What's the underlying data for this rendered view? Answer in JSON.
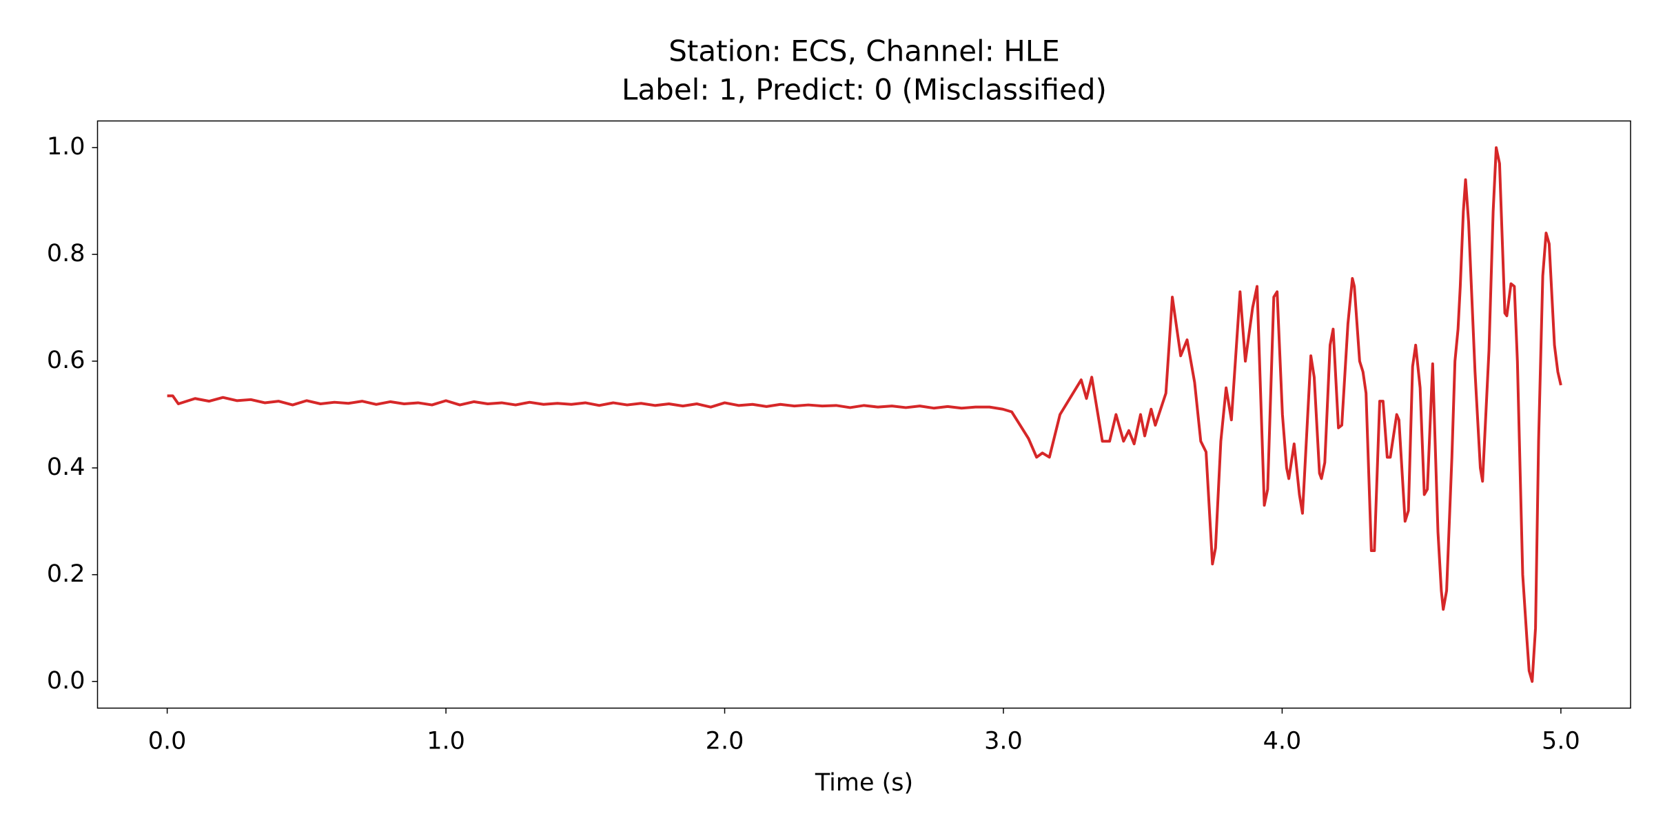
{
  "chart_data": {
    "type": "line",
    "title": "Station: ECS, Channel: HLE",
    "subtitle": "Label: 1, Predict: 0 (Misclassified)",
    "xlabel": "Time (s)",
    "color": "#d62728",
    "xlim": [
      -0.25,
      5.25
    ],
    "ylim": [
      -0.05,
      1.05
    ],
    "xticks": [
      {
        "value": 0,
        "label": "0.0"
      },
      {
        "value": 1,
        "label": "1.0"
      },
      {
        "value": 2,
        "label": "2.0"
      },
      {
        "value": 3,
        "label": "3.0"
      },
      {
        "value": 4,
        "label": "4.0"
      },
      {
        "value": 5,
        "label": "5.0"
      }
    ],
    "yticks": [
      {
        "value": 0,
        "label": "0.0"
      },
      {
        "value": 0.2,
        "label": "0.2"
      },
      {
        "value": 0.4,
        "label": "0.4"
      },
      {
        "value": 0.6,
        "label": "0.6"
      },
      {
        "value": 0.8,
        "label": "0.8"
      },
      {
        "value": 1,
        "label": "1.0"
      }
    ],
    "x": [
      0,
      0.02,
      0.04,
      0.07,
      0.1,
      0.15,
      0.2,
      0.25,
      0.3,
      0.35,
      0.4,
      0.45,
      0.5,
      0.55,
      0.6,
      0.65,
      0.7,
      0.75,
      0.8,
      0.85,
      0.9,
      0.95,
      1.0,
      1.05,
      1.1,
      1.15,
      1.2,
      1.25,
      1.3,
      1.35,
      1.4,
      1.45,
      1.5,
      1.55,
      1.6,
      1.65,
      1.7,
      1.75,
      1.8,
      1.85,
      1.9,
      1.95,
      2.0,
      2.05,
      2.1,
      2.15,
      2.2,
      2.25,
      2.3,
      2.35,
      2.4,
      2.45,
      2.5,
      2.55,
      2.6,
      2.65,
      2.7,
      2.75,
      2.8,
      2.85,
      2.9,
      2.95,
      2.998,
      3.03,
      3.06,
      3.09,
      3.119,
      3.14,
      3.165,
      3.203,
      3.279,
      3.298,
      3.317,
      3.355,
      3.381,
      3.404,
      3.431,
      3.45,
      3.469,
      3.492,
      3.507,
      3.53,
      3.545,
      3.583,
      3.606,
      3.636,
      3.659,
      3.686,
      3.708,
      3.727,
      3.75,
      3.761,
      3.78,
      3.799,
      3.818,
      3.849,
      3.868,
      3.894,
      3.91,
      3.936,
      3.948,
      3.97,
      3.982,
      4.001,
      4.016,
      4.024,
      4.043,
      4.062,
      4.073,
      4.103,
      4.115,
      4.134,
      4.141,
      4.153,
      4.172,
      4.183,
      4.202,
      4.214,
      4.236,
      4.252,
      4.259,
      4.278,
      4.29,
      4.301,
      4.32,
      4.331,
      4.35,
      4.362,
      4.377,
      4.388,
      4.411,
      4.419,
      4.441,
      4.453,
      4.468,
      4.479,
      4.495,
      4.51,
      4.521,
      4.54,
      4.559,
      4.571,
      4.578,
      4.59,
      4.609,
      4.62,
      4.631,
      4.639,
      4.65,
      4.658,
      4.669,
      4.692,
      4.711,
      4.719,
      4.742,
      4.757,
      4.768,
      4.78,
      4.799,
      4.806,
      4.821,
      4.833,
      4.844,
      4.863,
      4.878,
      4.886,
      4.897,
      4.909,
      4.92,
      4.935,
      4.947,
      4.958,
      4.977,
      4.989,
      5.0
    ],
    "values": [
      0.535,
      0.535,
      0.52,
      0.525,
      0.53,
      0.525,
      0.532,
      0.526,
      0.528,
      0.522,
      0.525,
      0.518,
      0.526,
      0.52,
      0.523,
      0.521,
      0.525,
      0.519,
      0.524,
      0.52,
      0.522,
      0.518,
      0.526,
      0.518,
      0.524,
      0.52,
      0.522,
      0.518,
      0.523,
      0.519,
      0.521,
      0.519,
      0.522,
      0.517,
      0.522,
      0.518,
      0.521,
      0.517,
      0.52,
      0.516,
      0.52,
      0.514,
      0.522,
      0.517,
      0.519,
      0.515,
      0.519,
      0.516,
      0.518,
      0.516,
      0.517,
      0.513,
      0.517,
      0.514,
      0.516,
      0.513,
      0.516,
      0.512,
      0.515,
      0.512,
      0.514,
      0.514,
      0.51,
      0.505,
      0.48,
      0.455,
      0.42,
      0.428,
      0.42,
      0.5,
      0.565,
      0.53,
      0.57,
      0.45,
      0.45,
      0.5,
      0.45,
      0.47,
      0.445,
      0.5,
      0.46,
      0.51,
      0.48,
      0.54,
      0.72,
      0.61,
      0.64,
      0.56,
      0.45,
      0.43,
      0.22,
      0.25,
      0.45,
      0.55,
      0.49,
      0.73,
      0.6,
      0.7,
      0.74,
      0.33,
      0.36,
      0.72,
      0.73,
      0.5,
      0.4,
      0.38,
      0.445,
      0.35,
      0.315,
      0.61,
      0.57,
      0.39,
      0.38,
      0.41,
      0.63,
      0.66,
      0.475,
      0.48,
      0.67,
      0.755,
      0.74,
      0.6,
      0.58,
      0.54,
      0.245,
      0.245,
      0.525,
      0.525,
      0.42,
      0.42,
      0.5,
      0.49,
      0.3,
      0.32,
      0.59,
      0.63,
      0.55,
      0.35,
      0.36,
      0.595,
      0.28,
      0.17,
      0.135,
      0.17,
      0.42,
      0.6,
      0.66,
      0.74,
      0.88,
      0.94,
      0.86,
      0.58,
      0.4,
      0.375,
      0.62,
      0.88,
      1.0,
      0.97,
      0.69,
      0.685,
      0.745,
      0.74,
      0.6,
      0.2,
      0.08,
      0.02,
      0.0,
      0.1,
      0.45,
      0.76,
      0.84,
      0.82,
      0.63,
      0.58,
      0.555
    ]
  }
}
